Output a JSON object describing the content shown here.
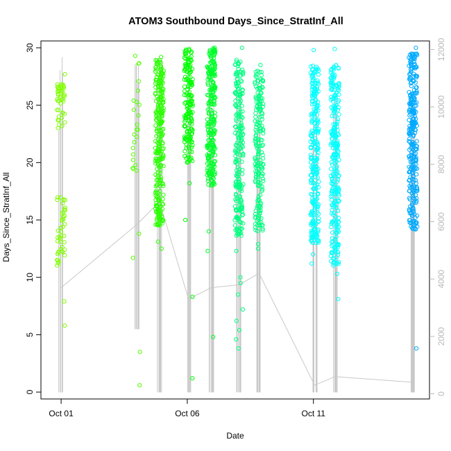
{
  "chart_data": {
    "type": "scatter",
    "title": "ATOM3 Southbound Days_Since_StratInf_All",
    "xlabel": "Date",
    "ylabel": "Days_Since_StratInf_All",
    "x_ticks": [
      "Oct 01",
      "Oct 06",
      "Oct 11"
    ],
    "x_tick_values": [
      0,
      5,
      10
    ],
    "y_ticks": [
      0,
      5,
      10,
      15,
      20,
      25,
      30
    ],
    "y2_ticks": [
      0,
      2000,
      4000,
      6000,
      8000,
      10000,
      12000
    ],
    "xlim": [
      -0.8,
      14.6
    ],
    "ylim": [
      -0.6,
      30.6
    ],
    "y2lim": [
      -180,
      12300
    ],
    "grid": false,
    "legend": "none",
    "marker": "open-circle",
    "line_color": "#c8c8c8",
    "right_axis_color": "#b8b8b8",
    "series": [
      {
        "x": 0.0,
        "color": "#80ff00",
        "y_min": 5.8,
        "y_max": 27.7,
        "dense": [
          [
            11,
            17
          ],
          [
            23,
            27
          ]
        ],
        "n": 90,
        "outliers": [
          5.8,
          7.9
        ]
      },
      {
        "x": 3.0,
        "color": "#55ff00",
        "y_min": 0.6,
        "y_max": 29.3,
        "dense": [
          [
            19,
            29
          ]
        ],
        "n": 22,
        "outliers": [
          0.6,
          3.5,
          11.7,
          13.8
        ]
      },
      {
        "x": 3.9,
        "color": "#2aff00",
        "y_min": 12.5,
        "y_max": 29.2,
        "dense": [
          [
            14.5,
            29
          ]
        ],
        "n": 280,
        "outliers": [
          12.5,
          13.1
        ]
      },
      {
        "x": 5.05,
        "color": "#00ff00",
        "y_min": 1.2,
        "y_max": 29.9,
        "dense": [
          [
            20,
            29.9
          ]
        ],
        "n": 180,
        "outliers": [
          1.2,
          8.3,
          15.0,
          18.2
        ]
      },
      {
        "x": 5.95,
        "color": "#00ff2a",
        "y_min": 4.8,
        "y_max": 30.0,
        "dense": [
          [
            18,
            30
          ]
        ],
        "n": 260,
        "outliers": [
          4.8,
          12.3,
          14.0
        ]
      },
      {
        "x": 7.05,
        "color": "#00ff80",
        "y_min": 3.8,
        "y_max": 30.0,
        "dense": [
          [
            13.5,
            29
          ]
        ],
        "n": 230,
        "outliers": [
          3.8,
          4.6,
          5.4,
          6.2,
          7.2,
          8.5,
          9.5,
          10.0,
          12.3
        ]
      },
      {
        "x": 7.85,
        "color": "#00ff80",
        "y_min": 12.5,
        "y_max": 28.5,
        "dense": [
          [
            14,
            28
          ]
        ],
        "n": 200,
        "outliers": [
          12.5,
          12.9
        ]
      },
      {
        "x": 10.05,
        "color": "#00ffff",
        "y_min": 11.2,
        "y_max": 29.8,
        "dense": [
          [
            13,
            28.5
          ]
        ],
        "n": 260,
        "outliers": [
          11.2,
          12.0
        ]
      },
      {
        "x": 10.85,
        "color": "#00ffff",
        "y_min": 8.1,
        "y_max": 29.9,
        "dense": [
          [
            11,
            28.5
          ]
        ],
        "n": 280,
        "outliers": [
          8.1,
          10.3
        ]
      },
      {
        "x": 13.95,
        "color": "#00aaff",
        "y_min": 3.8,
        "y_max": 30.0,
        "dense": [
          [
            14,
            29.5
          ]
        ],
        "n": 300,
        "outliers": [
          3.8
        ]
      }
    ],
    "line_y2": [
      {
        "x": 0.0,
        "y2_min": 50,
        "y2_max": 11900,
        "base": 3700
      },
      {
        "x": 3.0,
        "y2_min": 2250,
        "y2_max": 12250,
        "base": 5900
      },
      {
        "x": 3.9,
        "y2_min": 50,
        "y2_max": 11800,
        "base": 6700
      },
      {
        "x": 5.05,
        "y2_min": 50,
        "y2_max": 11600,
        "base": 3300
      },
      {
        "x": 5.95,
        "y2_min": 50,
        "y2_max": 11500,
        "base": 3700
      },
      {
        "x": 7.05,
        "y2_min": 50,
        "y2_max": 11300,
        "base": 3800
      },
      {
        "x": 7.85,
        "y2_min": 50,
        "y2_max": 11100,
        "base": 4200
      },
      {
        "x": 10.05,
        "y2_min": 50,
        "y2_max": 11000,
        "base": 300
      },
      {
        "x": 10.85,
        "y2_min": 50,
        "y2_max": 10900,
        "base": 600
      },
      {
        "x": 13.95,
        "y2_min": 50,
        "y2_max": 10000,
        "base": 400
      }
    ]
  }
}
